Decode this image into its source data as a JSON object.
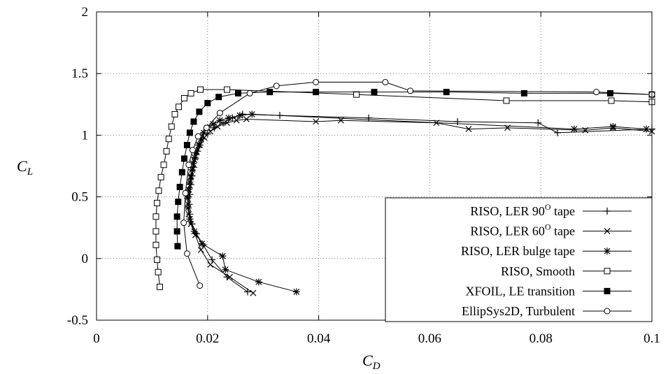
{
  "chart_data": {
    "type": "line",
    "title": "",
    "xlabel": {
      "main": "C",
      "sub": "D"
    },
    "ylabel": {
      "main": "C",
      "sub": "L"
    },
    "xlim": [
      0,
      0.1
    ],
    "ylim": [
      -0.5,
      2
    ],
    "grid": true,
    "legend_position": "bottom-right",
    "x_ticks": [
      {
        "value": 0,
        "label": "0"
      },
      {
        "value": 0.02,
        "label": "0.02"
      },
      {
        "value": 0.04,
        "label": "0.04"
      },
      {
        "value": 0.06,
        "label": "0.06"
      },
      {
        "value": 0.08,
        "label": "0.08"
      },
      {
        "value": 0.1,
        "label": "0.1"
      }
    ],
    "y_ticks": [
      {
        "value": -0.5,
        "label": "-0.5"
      },
      {
        "value": 0,
        "label": "0"
      },
      {
        "value": 0.5,
        "label": "0.5"
      },
      {
        "value": 1,
        "label": "1"
      },
      {
        "value": 1.5,
        "label": "1.5"
      },
      {
        "value": 2,
        "label": "2"
      }
    ],
    "series": [
      {
        "name": "RISO, LER 90",
        "name_sup": "O",
        "name_suffix": " tape",
        "marker": "plus",
        "x": [
          0.0272,
          0.0235,
          0.0208,
          0.0192,
          0.018,
          0.0172,
          0.0168,
          0.0167,
          0.0168,
          0.017,
          0.0172,
          0.0175,
          0.0178,
          0.0182,
          0.0186,
          0.0192,
          0.02,
          0.0212,
          0.0228,
          0.0245,
          0.0263,
          0.033,
          0.049,
          0.065,
          0.0795,
          0.083,
          0.1
        ],
        "y": [
          -0.27,
          -0.15,
          -0.01,
          0.11,
          0.2,
          0.28,
          0.36,
          0.44,
          0.52,
          0.6,
          0.67,
          0.74,
          0.81,
          0.87,
          0.92,
          0.97,
          1.01,
          1.06,
          1.1,
          1.14,
          1.17,
          1.16,
          1.14,
          1.11,
          1.1,
          1.02,
          1.05
        ]
      },
      {
        "name": "RISO, LER 60",
        "name_sup": "O",
        "name_suffix": " tape",
        "marker": "cross",
        "x": [
          0.0282,
          0.024,
          0.0205,
          0.0188,
          0.0178,
          0.017,
          0.0166,
          0.0165,
          0.0166,
          0.0168,
          0.017,
          0.0173,
          0.0176,
          0.018,
          0.0186,
          0.0194,
          0.0205,
          0.0218,
          0.0235,
          0.0252,
          0.027,
          0.0395,
          0.044,
          0.0612,
          0.067,
          0.074,
          0.088,
          0.093,
          0.1
        ],
        "y": [
          -0.28,
          -0.15,
          -0.05,
          0.07,
          0.19,
          0.28,
          0.36,
          0.44,
          0.52,
          0.59,
          0.66,
          0.73,
          0.8,
          0.86,
          0.92,
          0.98,
          1.03,
          1.07,
          1.1,
          1.12,
          1.13,
          1.11,
          1.12,
          1.1,
          1.05,
          1.06,
          1.04,
          1.06,
          1.03
        ]
      },
      {
        "name": "RISO, LER bulge tape",
        "marker": "star",
        "x": [
          0.036,
          0.0292,
          0.0232,
          0.0227,
          0.019,
          0.0176,
          0.0168,
          0.0165,
          0.0164,
          0.0166,
          0.0168,
          0.017,
          0.0172,
          0.0174,
          0.0177,
          0.018,
          0.0184,
          0.0188,
          0.0193,
          0.02,
          0.021,
          0.0222,
          0.0238,
          0.0258,
          0.028,
          0.086,
          0.093,
          0.099
        ],
        "y": [
          -0.27,
          -0.19,
          -0.09,
          0.02,
          0.12,
          0.22,
          0.32,
          0.41,
          0.49,
          0.56,
          0.62,
          0.67,
          0.72,
          0.77,
          0.82,
          0.87,
          0.92,
          0.97,
          1.02,
          1.06,
          1.09,
          1.12,
          1.14,
          1.16,
          1.17,
          1.05,
          1.07,
          1.05
        ]
      },
      {
        "name": "RISO, Smooth",
        "marker": "open-square",
        "x": [
          0.0114,
          0.0111,
          0.0109,
          0.0107,
          0.0107,
          0.0107,
          0.0109,
          0.0112,
          0.0116,
          0.0121,
          0.0126,
          0.013,
          0.0135,
          0.0141,
          0.0148,
          0.0158,
          0.017,
          0.0187,
          0.0235,
          0.0468,
          0.0738,
          0.0927,
          0.1
        ],
        "y": [
          -0.23,
          -0.11,
          -0.01,
          0.11,
          0.22,
          0.34,
          0.45,
          0.55,
          0.66,
          0.76,
          0.87,
          0.97,
          1.07,
          1.17,
          1.23,
          1.3,
          1.34,
          1.37,
          1.37,
          1.33,
          1.28,
          1.28,
          1.27
        ]
      },
      {
        "name": "XFOIL, LE transition",
        "marker": "filled-square",
        "x": [
          0.0146,
          0.0145,
          0.0145,
          0.0147,
          0.015,
          0.0154,
          0.0158,
          0.0163,
          0.0168,
          0.0175,
          0.0185,
          0.02,
          0.022,
          0.0255,
          0.0312,
          0.0395,
          0.05,
          0.063,
          0.077,
          0.0925,
          0.1
        ],
        "y": [
          0.1,
          0.22,
          0.34,
          0.46,
          0.58,
          0.7,
          0.81,
          0.92,
          1.02,
          1.11,
          1.19,
          1.26,
          1.31,
          1.34,
          1.35,
          1.35,
          1.35,
          1.35,
          1.34,
          1.34,
          1.33
        ]
      },
      {
        "name": "EllipSys2D, Turbulent",
        "marker": "open-circle",
        "x": [
          0.0186,
          0.0163,
          0.0157,
          0.016,
          0.0166,
          0.0173,
          0.0183,
          0.0198,
          0.0222,
          0.0276,
          0.0324,
          0.0395,
          0.052,
          0.0565,
          0.09,
          0.1
        ],
        "y": [
          -0.22,
          0.04,
          0.29,
          0.53,
          0.76,
          0.88,
          0.99,
          1.06,
          1.18,
          1.34,
          1.4,
          1.43,
          1.43,
          1.36,
          1.35,
          1.33
        ]
      }
    ]
  }
}
